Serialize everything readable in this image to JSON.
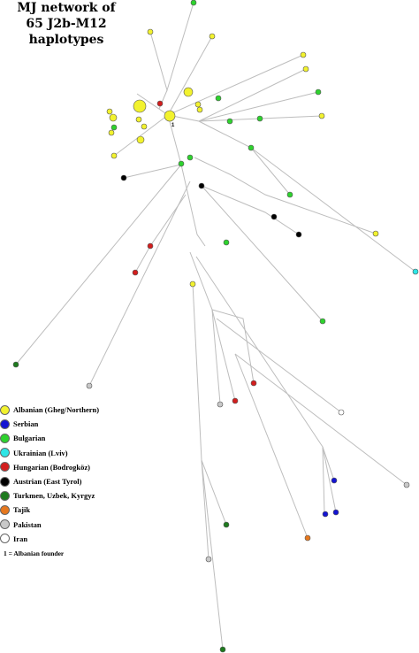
{
  "title": {
    "line1": "MJ network of",
    "line2": "65 J2b-M12 haplotypes"
  },
  "legend": [
    {
      "key": "albanian",
      "label": "Albanian (Gheg/Northern)",
      "color": "#f2f22e"
    },
    {
      "key": "serbian",
      "label": "Serbian",
      "color": "#1414d2"
    },
    {
      "key": "bulgarian",
      "label": "Bulgarian",
      "color": "#2ed22e"
    },
    {
      "key": "ukrainian",
      "label": "Ukrainian (Lviv)",
      "color": "#2ee6e6"
    },
    {
      "key": "hungarian",
      "label": "Hungarian (Bodrogköz)",
      "color": "#d21e1e"
    },
    {
      "key": "austrian",
      "label": "Austrian (East Tyrol)",
      "color": "#000000"
    },
    {
      "key": "turkmen",
      "label": "Turkmen, Uzbek, Kyrgyz",
      "color": "#1e7a1e"
    },
    {
      "key": "tajik",
      "label": "Tajik",
      "color": "#e6781e"
    },
    {
      "key": "pakistan",
      "label": "Pakistan",
      "color": "#c8c8c8"
    },
    {
      "key": "iran",
      "label": "Iran",
      "color": "#ffffff"
    }
  ],
  "founder_note": "1 = Albanian founder",
  "founder_label": "1"
}
